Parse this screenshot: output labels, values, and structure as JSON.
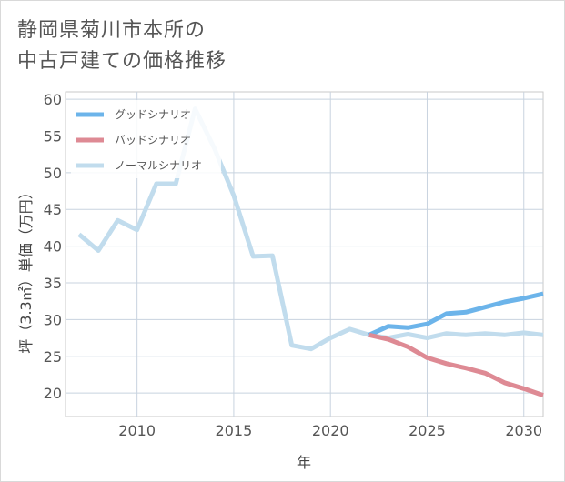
{
  "title_lines": [
    "静岡県菊川市本所の",
    "中古戸建ての価格推移"
  ],
  "chart_data": {
    "type": "line",
    "title": "静岡県菊川市本所の中古戸建ての価格推移",
    "xlabel": "年",
    "ylabel": "坪（3.3㎡）単価（万円）",
    "xlim": [
      2006.3,
      2031
    ],
    "ylim": [
      16.8,
      61
    ],
    "xticks": [
      2010,
      2015,
      2020,
      2025,
      2030
    ],
    "yticks": [
      20,
      25,
      30,
      35,
      40,
      45,
      50,
      55,
      60
    ],
    "grid": true,
    "legend_position": "top-left",
    "series": [
      {
        "name": "グッドシナリオ",
        "color": "#6cb4ea",
        "x": [
          2022,
          2023,
          2024,
          2025,
          2026,
          2027,
          2028,
          2029,
          2030,
          2031
        ],
        "y": [
          27.9,
          29.1,
          28.9,
          29.4,
          30.8,
          31.0,
          31.7,
          32.4,
          32.9,
          33.5
        ]
      },
      {
        "name": "バッドシナリオ",
        "color": "#de8a94",
        "x": [
          2022,
          2023,
          2024,
          2025,
          2026,
          2027,
          2028,
          2029,
          2030,
          2031
        ],
        "y": [
          27.9,
          27.3,
          26.3,
          24.8,
          24.0,
          23.4,
          22.7,
          21.4,
          20.6,
          19.7
        ]
      },
      {
        "name": "ノーマルシナリオ",
        "color": "#c1dced",
        "x": [
          2007,
          2008,
          2009,
          2010,
          2011,
          2012,
          2013,
          2014,
          2015,
          2016,
          2017,
          2018,
          2019,
          2020,
          2021,
          2022,
          2023,
          2024,
          2025,
          2026,
          2027,
          2028,
          2029,
          2030,
          2031
        ],
        "y": [
          41.6,
          39.4,
          43.5,
          42.2,
          48.5,
          48.5,
          58.7,
          53.3,
          46.9,
          38.6,
          38.7,
          26.5,
          26.0,
          27.5,
          28.7,
          27.9,
          27.5,
          28.0,
          27.5,
          28.1,
          27.9,
          28.1,
          27.9,
          28.2,
          27.9
        ]
      }
    ]
  }
}
